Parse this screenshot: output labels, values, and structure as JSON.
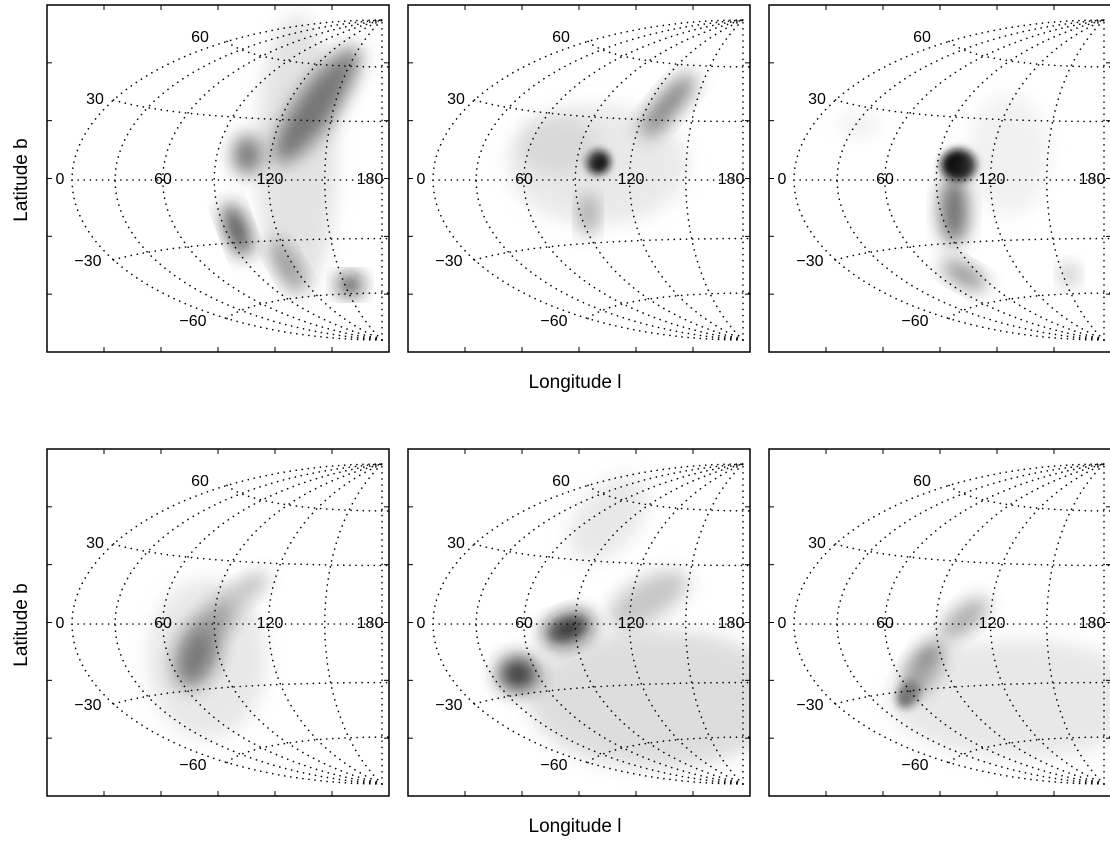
{
  "figure": {
    "y_label": "Latitude b",
    "x_label": "Longitude l",
    "lat_labels": [
      "60",
      "30",
      "−30",
      "−60"
    ],
    "lon_labels": [
      "0",
      "60",
      "120",
      "180"
    ]
  }
}
